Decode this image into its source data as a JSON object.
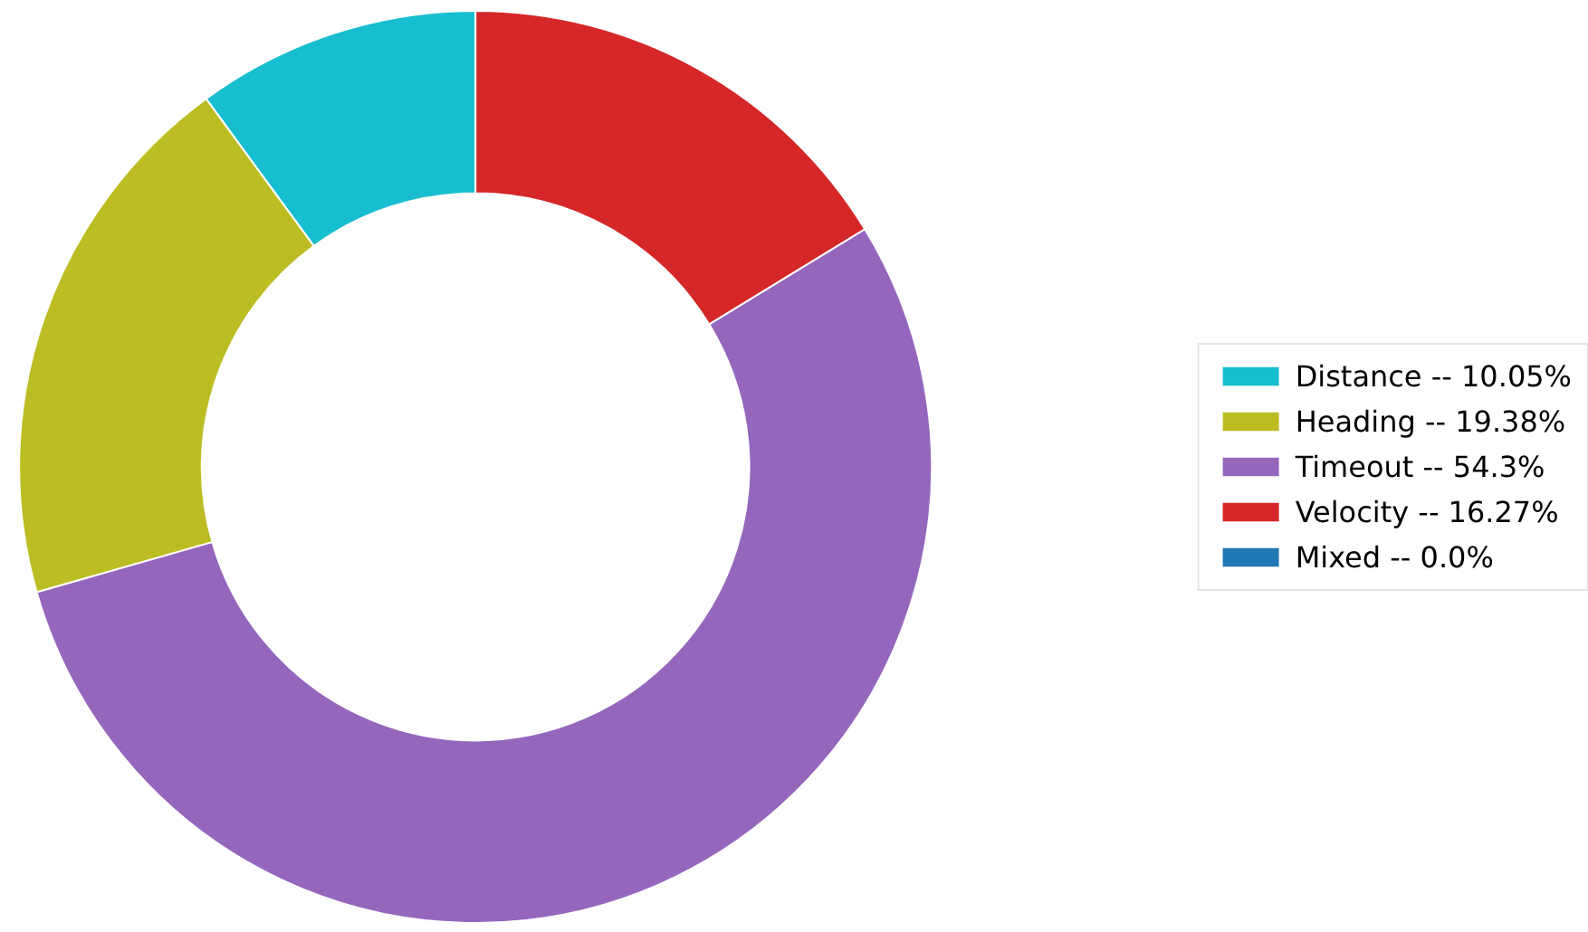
{
  "chart_data": {
    "type": "donut",
    "categories": [
      "Distance -- 10.05%",
      "Heading -- 19.38%",
      "Timeout -- 54.3%",
      "Velocity -- 16.27%",
      "Mixed -- 0.0%"
    ],
    "values": [
      10.05,
      19.38,
      54.3,
      16.27,
      0.0
    ],
    "colors": [
      "#17becf",
      "#bcbd22",
      "#9467bd",
      "#d62728",
      "#1f77b4"
    ],
    "legend": "right"
  }
}
